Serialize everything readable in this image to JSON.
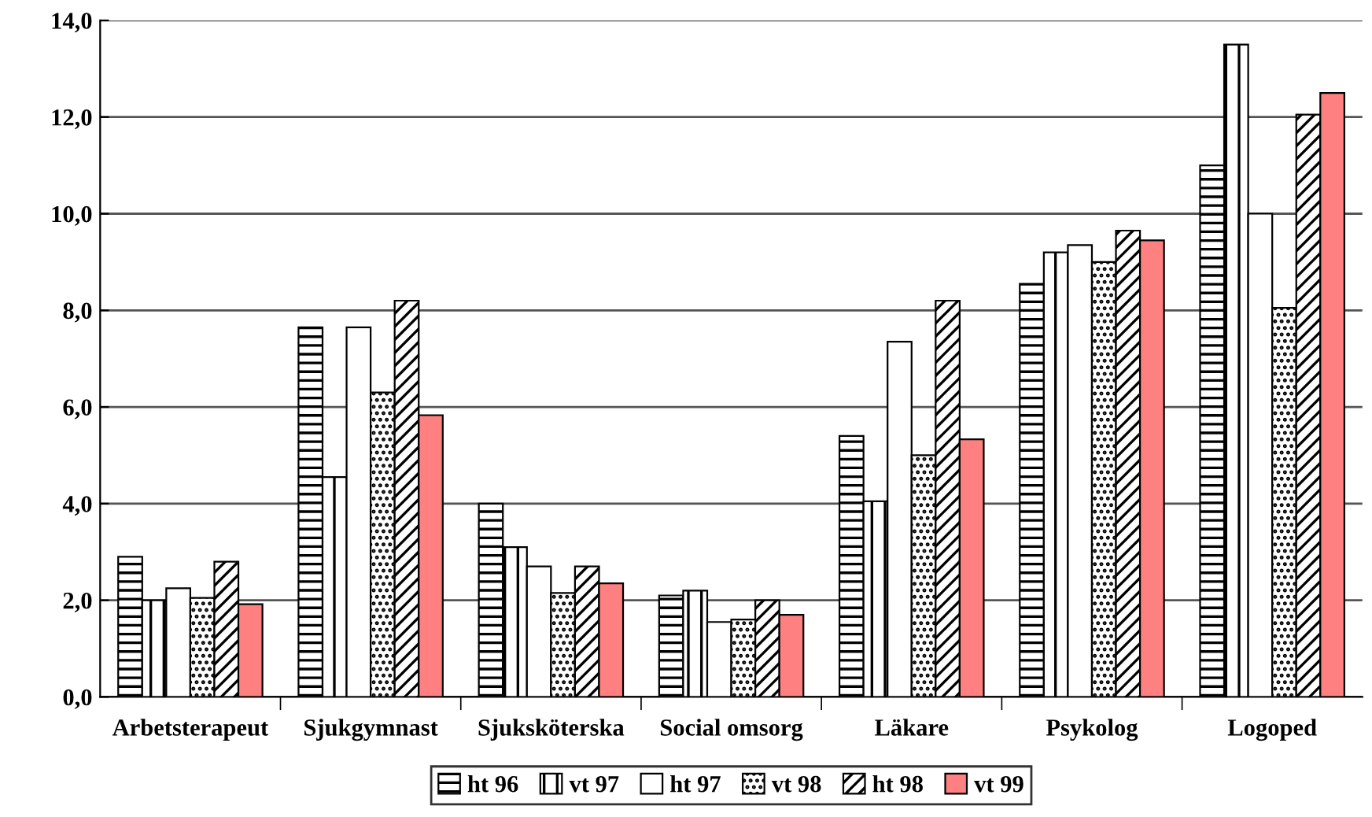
{
  "chart_data": {
    "type": "bar",
    "categories": [
      "Arbetsterapeut",
      "Sjukgymnast",
      "Sjuksköterska",
      "Social omsorg",
      "Läkare",
      "Psykolog",
      "Logoped"
    ],
    "series": [
      {
        "name": "ht 96",
        "color": "#000000",
        "values": [
          2.9,
          7.65,
          4.0,
          2.1,
          5.4,
          8.55,
          11.0
        ]
      },
      {
        "name": "vt 97",
        "color": "#000000",
        "values": [
          2.0,
          4.55,
          3.1,
          2.2,
          4.05,
          9.2,
          13.5
        ]
      },
      {
        "name": "ht 97",
        "color": "#ffffff",
        "values": [
          2.25,
          7.65,
          2.7,
          1.55,
          7.35,
          9.35,
          10.0
        ]
      },
      {
        "name": "vt 98",
        "color": "#000000",
        "values": [
          2.05,
          6.3,
          2.15,
          1.6,
          5.0,
          9.0,
          8.05
        ]
      },
      {
        "name": "ht 98",
        "color": "#000000",
        "values": [
          2.8,
          8.2,
          2.7,
          2.0,
          8.2,
          9.65,
          12.05
        ]
      },
      {
        "name": "vt 99",
        "color": "#ff8080",
        "values": [
          1.92,
          5.83,
          2.35,
          1.7,
          5.33,
          9.45,
          12.5
        ]
      }
    ],
    "ylim": [
      0,
      14
    ],
    "yticks": [
      {
        "value": 0,
        "label": "0,0"
      },
      {
        "value": 2,
        "label": "2,0"
      },
      {
        "value": 4,
        "label": "4,0"
      },
      {
        "value": 6,
        "label": "6,0"
      },
      {
        "value": 8,
        "label": "8,0"
      },
      {
        "value": 10,
        "label": "10,0"
      },
      {
        "value": 12,
        "label": "12,0"
      },
      {
        "value": 14,
        "label": "14,0"
      }
    ],
    "grid": "y",
    "legend": "bottom"
  }
}
